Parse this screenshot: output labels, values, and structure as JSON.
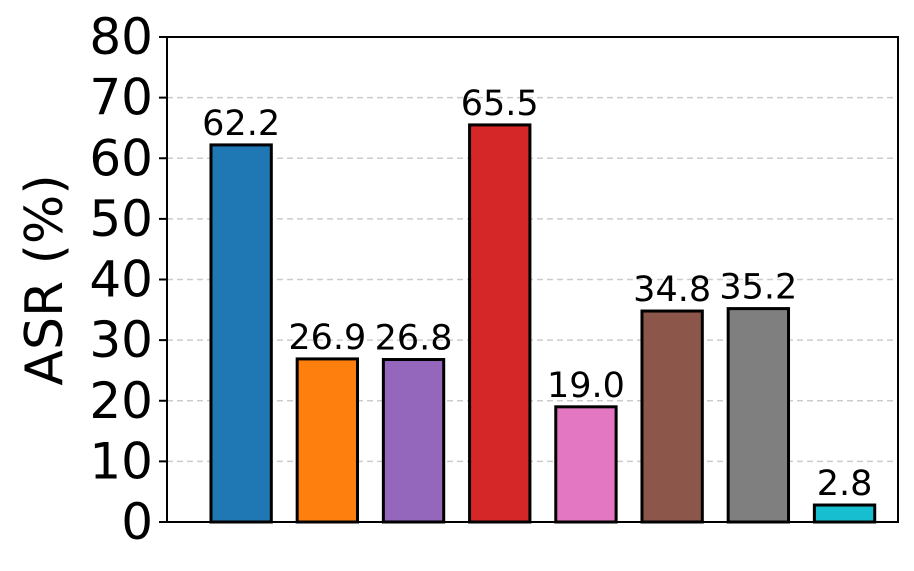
{
  "chart_data": {
    "type": "bar",
    "ylabel": "ASR (%)",
    "xlabel": "",
    "ylim": [
      0,
      80
    ],
    "yticks": [
      0,
      10,
      20,
      30,
      40,
      50,
      60,
      70,
      80
    ],
    "grid": "horizontal dashed",
    "bars": [
      {
        "value": 62.2,
        "label": "62.2",
        "color": "#1f77b4"
      },
      {
        "value": 26.9,
        "label": "26.9",
        "color": "#ff7f0e"
      },
      {
        "value": 26.8,
        "label": "26.8",
        "color": "#9467bd"
      },
      {
        "value": 65.5,
        "label": "65.5",
        "color": "#d62728"
      },
      {
        "value": 19.0,
        "label": "19.0",
        "color": "#e377c2"
      },
      {
        "value": 34.8,
        "label": "34.8",
        "color": "#8c564b"
      },
      {
        "value": 35.2,
        "label": "35.2",
        "color": "#7f7f7f"
      },
      {
        "value": 2.8,
        "label": "2.8",
        "color": "#17becf"
      }
    ]
  }
}
